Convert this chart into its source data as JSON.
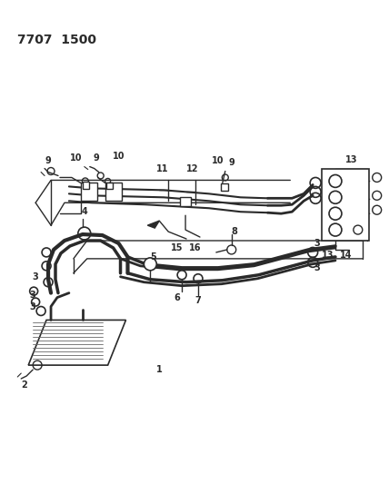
{
  "title_code": "7707  1500",
  "bg_color": "#ffffff",
  "line_color": "#2a2a2a",
  "title_fontsize": 10,
  "label_fontsize": 7,
  "figsize": [
    4.28,
    5.33
  ],
  "dpi": 100
}
